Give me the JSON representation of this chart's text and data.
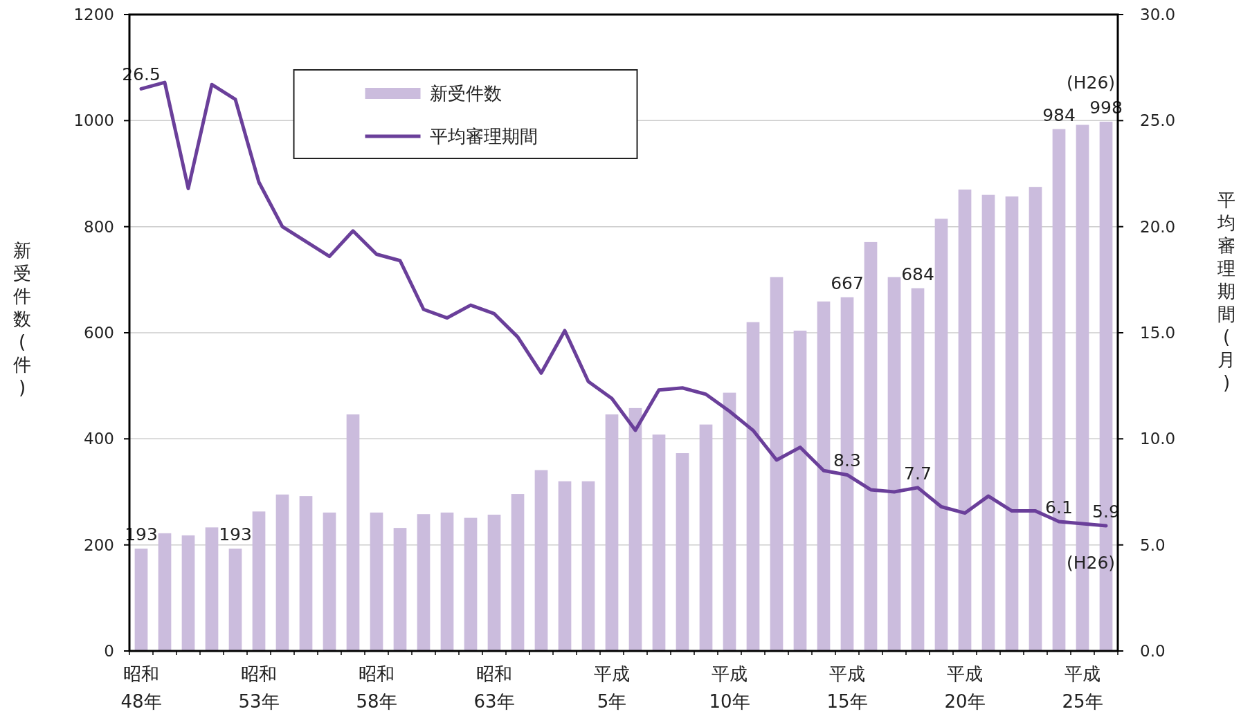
{
  "chart_data": {
    "type": "bar",
    "categories": [
      "昭和\n48年",
      null,
      null,
      null,
      null,
      "昭和\n53年",
      null,
      null,
      null,
      null,
      "昭和\n58年",
      null,
      null,
      null,
      null,
      "昭和\n63年",
      null,
      null,
      null,
      null,
      "平成\n5年",
      null,
      null,
      null,
      null,
      "平成\n10年",
      null,
      null,
      null,
      null,
      "平成\n15年",
      null,
      null,
      null,
      null,
      "平成\n20年",
      null,
      null,
      null,
      null,
      "平成\n25年",
      null
    ],
    "series": [
      {
        "name": "新受件数",
        "color": "#cbbcdd",
        "values": [
          193,
          222,
          218,
          233,
          193,
          263,
          295,
          292,
          261,
          446,
          261,
          232,
          258,
          261,
          251,
          257,
          296,
          341,
          320,
          320,
          446,
          458,
          408,
          373,
          427,
          487,
          620,
          705,
          604,
          659,
          667,
          771,
          705,
          684,
          815,
          870,
          860,
          857,
          875,
          984,
          992,
          998
        ],
        "value_labels": [
          "193",
          null,
          null,
          null,
          "193",
          null,
          null,
          null,
          null,
          null,
          null,
          null,
          null,
          null,
          null,
          null,
          null,
          null,
          null,
          null,
          null,
          null,
          null,
          null,
          null,
          null,
          null,
          null,
          null,
          null,
          "667",
          null,
          null,
          "684",
          null,
          null,
          null,
          null,
          null,
          "984",
          null,
          "998"
        ]
      },
      {
        "name": "平均審理期間",
        "type": "line",
        "axis": "y2",
        "color": "#6a3f9a",
        "values": [
          26.5,
          26.8,
          21.8,
          26.7,
          26.0,
          22.1,
          20.0,
          19.3,
          18.6,
          19.8,
          18.7,
          18.4,
          16.1,
          15.7,
          16.3,
          15.9,
          14.8,
          13.1,
          15.1,
          12.7,
          11.9,
          10.4,
          12.3,
          12.4,
          12.1,
          11.3,
          10.4,
          9.0,
          9.6,
          8.5,
          8.3,
          7.6,
          7.5,
          7.7,
          6.8,
          6.5,
          7.3,
          6.6,
          6.6,
          6.1,
          6.0,
          5.9
        ],
        "value_labels": [
          "26.5",
          null,
          null,
          null,
          null,
          null,
          null,
          null,
          null,
          null,
          null,
          null,
          null,
          null,
          null,
          null,
          null,
          null,
          null,
          null,
          null,
          null,
          null,
          null,
          null,
          null,
          null,
          null,
          null,
          null,
          "8.3",
          null,
          null,
          "7.7",
          null,
          null,
          null,
          null,
          null,
          "6.1",
          null,
          "5.9"
        ]
      }
    ],
    "ylabel": "新受件数(件)",
    "y2label": "平均審理期間(月)",
    "ylim": [
      0,
      1200
    ],
    "yticks": [
      0,
      200,
      400,
      600,
      800,
      1000,
      1200
    ],
    "y2lim": [
      0,
      30
    ],
    "y2ticks": [
      {
        "value": 0,
        "label": "0.0"
      },
      {
        "value": 5,
        "label": "5.0"
      },
      {
        "value": 10,
        "label": "10.0"
      },
      {
        "value": 15,
        "label": "15.0"
      },
      {
        "value": 20,
        "label": "20.0"
      },
      {
        "value": 25,
        "label": "25.0"
      },
      {
        "value": 30,
        "label": "30.0"
      }
    ],
    "grid": "y",
    "legend": "top",
    "annotations": [
      "(H26)",
      "(H26)"
    ]
  }
}
